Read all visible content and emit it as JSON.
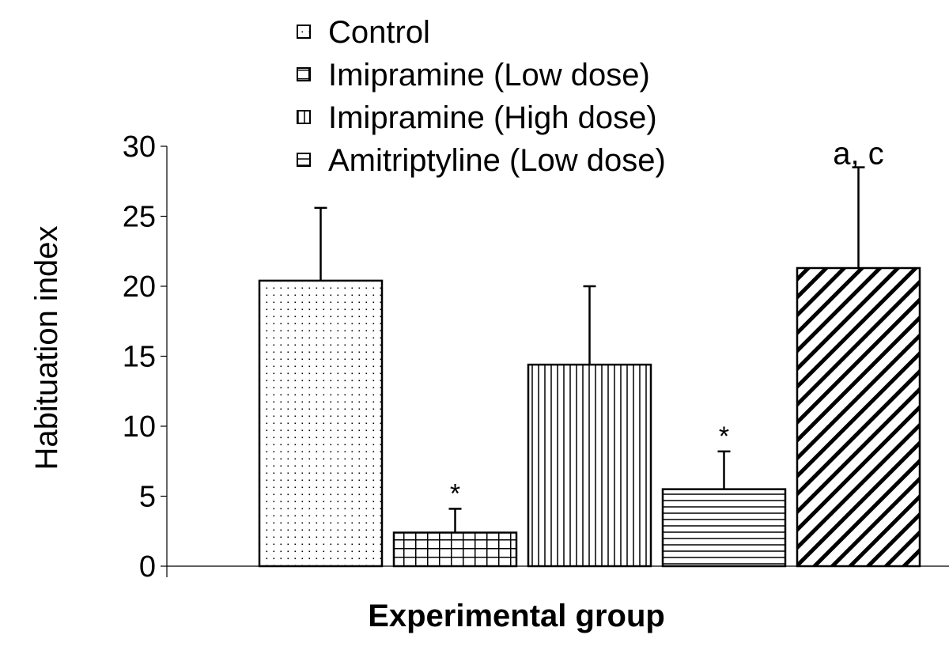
{
  "chart_data": {
    "type": "bar",
    "title": "",
    "xlabel": "Experimental group",
    "ylabel": "Habituation index",
    "ylim": [
      0,
      30
    ],
    "yticks": [
      0,
      5,
      10,
      15,
      20,
      25,
      30
    ],
    "grid": false,
    "legend_position": "top",
    "series": [
      {
        "name": "Control",
        "value": 20.4,
        "error": 5.2,
        "annotation": "",
        "pattern": "dots"
      },
      {
        "name": "Imipramine (Low dose)",
        "value": 2.4,
        "error": 1.7,
        "annotation": "*",
        "pattern": "grid"
      },
      {
        "name": "Imipramine (High dose)",
        "value": 14.4,
        "error": 5.6,
        "annotation": "",
        "pattern": "vertical"
      },
      {
        "name": "Amitriptyline (Low dose)",
        "value": 5.5,
        "error": 2.7,
        "annotation": "*",
        "pattern": "horizontal"
      },
      {
        "name": "",
        "value": 21.3,
        "error": 7.2,
        "annotation": "a, c",
        "pattern": "diagonal"
      }
    ]
  }
}
